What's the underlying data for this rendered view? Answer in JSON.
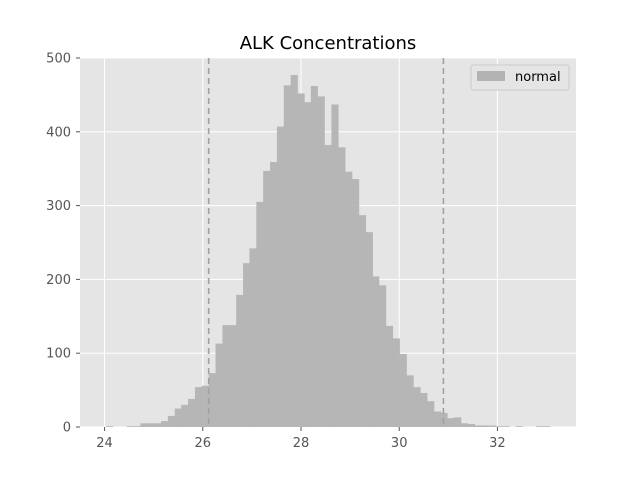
{
  "chart_data": {
    "type": "bar",
    "title": "ALK Concentrations",
    "xlabel": "",
    "ylabel": "",
    "xlim": [
      23.5,
      33.6
    ],
    "ylim": [
      0,
      500
    ],
    "xticks": [
      24,
      26,
      28,
      30,
      32
    ],
    "yticks": [
      0,
      100,
      200,
      300,
      400,
      500
    ],
    "grid": true,
    "legend": {
      "position": "top-right",
      "entries": [
        "normal"
      ]
    },
    "bar_color": "#b3b3b3",
    "vlines": [
      26.12,
      30.9
    ],
    "series": [
      {
        "name": "normal",
        "bin_width": 0.1388,
        "bins": [
          [
            24.03,
            1
          ],
          [
            24.17,
            0
          ],
          [
            24.31,
            0
          ],
          [
            24.45,
            1
          ],
          [
            24.59,
            1
          ],
          [
            24.73,
            5
          ],
          [
            24.87,
            5
          ],
          [
            25.01,
            5
          ],
          [
            25.15,
            8
          ],
          [
            25.29,
            15
          ],
          [
            25.43,
            25
          ],
          [
            25.56,
            30
          ],
          [
            25.7,
            38
          ],
          [
            25.84,
            54
          ],
          [
            25.98,
            56
          ],
          [
            26.12,
            73
          ],
          [
            26.26,
            113
          ],
          [
            26.4,
            138
          ],
          [
            26.54,
            138
          ],
          [
            26.68,
            179
          ],
          [
            26.82,
            222
          ],
          [
            26.95,
            242
          ],
          [
            27.09,
            305
          ],
          [
            27.23,
            347
          ],
          [
            27.37,
            359
          ],
          [
            27.51,
            407
          ],
          [
            27.65,
            463
          ],
          [
            27.79,
            477
          ],
          [
            27.93,
            452
          ],
          [
            28.06,
            440
          ],
          [
            28.2,
            462
          ],
          [
            28.34,
            448
          ],
          [
            28.48,
            382
          ],
          [
            28.62,
            437
          ],
          [
            28.76,
            379
          ],
          [
            28.9,
            346
          ],
          [
            29.04,
            336
          ],
          [
            29.18,
            287
          ],
          [
            29.32,
            264
          ],
          [
            29.45,
            204
          ],
          [
            29.59,
            192
          ],
          [
            29.73,
            137
          ],
          [
            29.87,
            120
          ],
          [
            30.01,
            99
          ],
          [
            30.15,
            70
          ],
          [
            30.29,
            54
          ],
          [
            30.43,
            46
          ],
          [
            30.57,
            35
          ],
          [
            30.71,
            21
          ],
          [
            30.84,
            19
          ],
          [
            30.98,
            12
          ],
          [
            31.12,
            13
          ],
          [
            31.26,
            5
          ],
          [
            31.4,
            4
          ],
          [
            31.54,
            2
          ],
          [
            31.68,
            2
          ],
          [
            31.82,
            2
          ],
          [
            31.96,
            1
          ],
          [
            32.1,
            1
          ],
          [
            32.23,
            0
          ],
          [
            32.37,
            1
          ],
          [
            32.51,
            0
          ],
          [
            32.65,
            0
          ],
          [
            32.79,
            1
          ],
          [
            32.93,
            1
          ],
          [
            33.07,
            0
          ],
          [
            33.21,
            0
          ]
        ]
      }
    ]
  }
}
